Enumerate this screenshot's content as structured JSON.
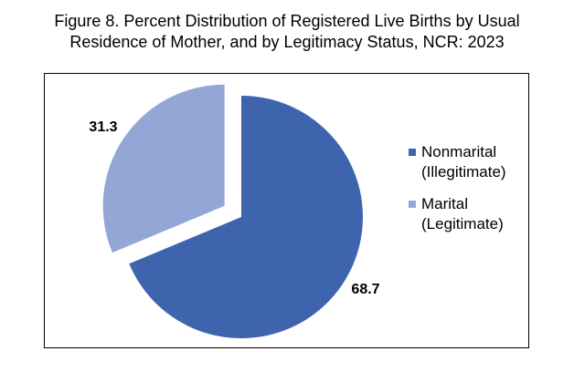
{
  "title_line1": "Figure 8. Percent Distribution of Registered Live Births by Usual",
  "title_line2": "Residence of Mother, and by Legitimacy Status, NCR: 2023",
  "chart_data": {
    "type": "pie",
    "title": "Figure 8. Percent Distribution of Registered Live Births by Usual Residence of Mother, and by Legitimacy Status, NCR: 2023",
    "categories": [
      "Nonmarital (Illegitimate)",
      "Marital (Legitimate)"
    ],
    "values": [
      68.7,
      31.3
    ],
    "data_labels": [
      "68.7",
      "31.3"
    ],
    "colors": [
      "#3F64AE",
      "#93A6D5"
    ],
    "exploded": [
      false,
      true
    ],
    "legend_position": "right",
    "legend": [
      {
        "line1": "Nonmarital",
        "line2": "(Illegitimate)",
        "color": "#3F64AE"
      },
      {
        "line1": "Marital",
        "line2": "(Legitimate)",
        "color": "#93A6D5"
      }
    ]
  }
}
